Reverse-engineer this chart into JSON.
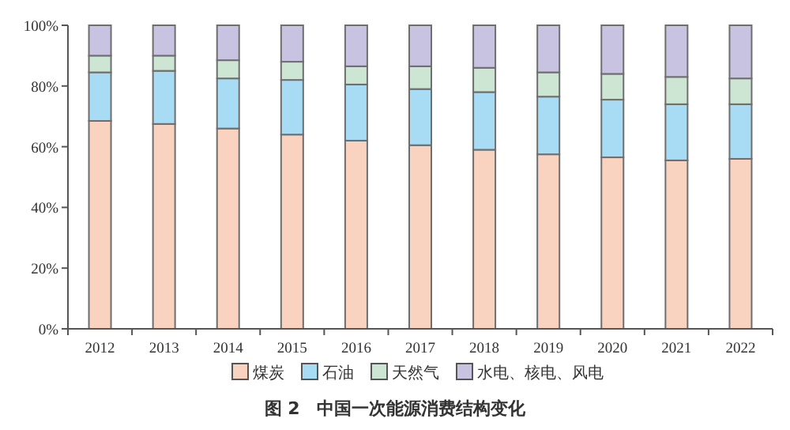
{
  "chart_data": {
    "type": "bar",
    "stacked": true,
    "title": "图 2　中国一次能源消费结构变化",
    "categories": [
      "2012",
      "2013",
      "2014",
      "2015",
      "2016",
      "2017",
      "2018",
      "2019",
      "2020",
      "2021",
      "2022"
    ],
    "series": [
      {
        "name": "煤炭",
        "color": "#f9d2c0",
        "values": [
          68.5,
          67.5,
          66.0,
          64.0,
          62.0,
          60.5,
          59.0,
          57.5,
          56.5,
          55.5,
          56.0
        ]
      },
      {
        "name": "石油",
        "color": "#a8dcf4",
        "values": [
          16.0,
          17.5,
          16.5,
          18.0,
          18.5,
          18.5,
          19.0,
          19.0,
          19.0,
          18.5,
          18.0
        ]
      },
      {
        "name": "天然气",
        "color": "#cde6d3",
        "values": [
          5.5,
          5.0,
          6.0,
          6.0,
          6.0,
          7.5,
          8.0,
          8.0,
          8.5,
          9.0,
          8.5
        ]
      },
      {
        "name": "水电、核电、风电",
        "color": "#c8c3e0",
        "values": [
          10.0,
          10.0,
          11.5,
          12.0,
          13.5,
          13.5,
          14.0,
          15.5,
          16.0,
          17.0,
          17.5
        ]
      }
    ],
    "ylim": [
      0,
      100
    ],
    "yticks": [
      {
        "value": 0,
        "label": "0%"
      },
      {
        "value": 20,
        "label": "20%"
      },
      {
        "value": 40,
        "label": "40%"
      },
      {
        "value": 60,
        "label": "60%"
      },
      {
        "value": 80,
        "label": "80%"
      },
      {
        "value": 100,
        "label": "100%"
      }
    ],
    "legend": "bottom",
    "grid": false
  }
}
